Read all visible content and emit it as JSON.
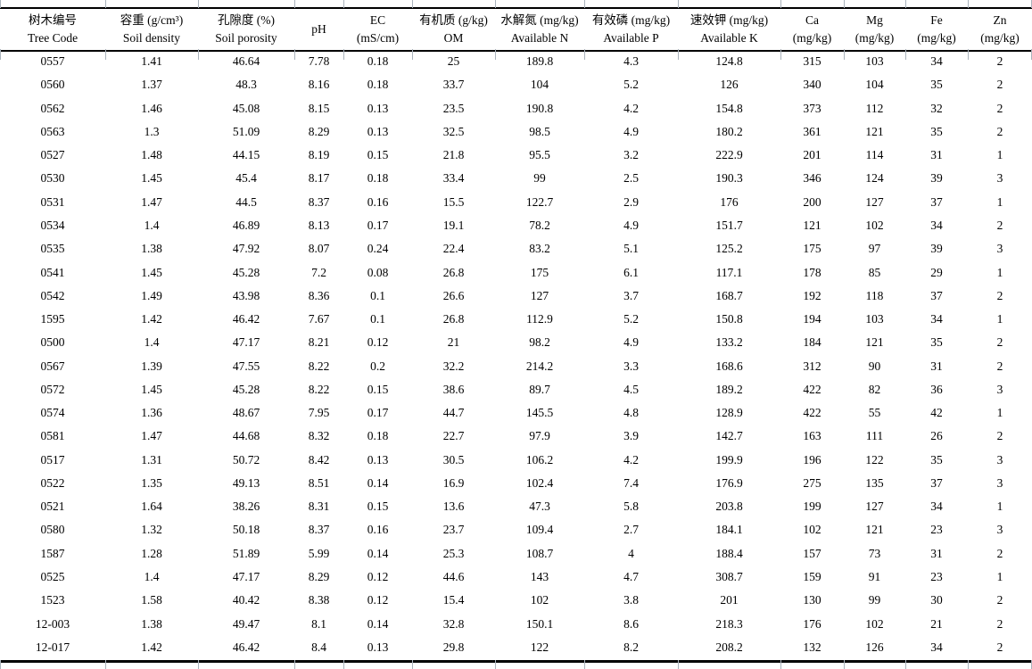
{
  "table": {
    "columns": [
      {
        "id": "tree_code",
        "line1": "树木编号",
        "line2": "Tree Code"
      },
      {
        "id": "soil_density",
        "line1": "容重 (g/cm³)",
        "line2": "Soil density"
      },
      {
        "id": "soil_porosity",
        "line1": "孔隙度 (%)",
        "line2": "Soil porosity"
      },
      {
        "id": "ph",
        "line1": "pH",
        "line2": ""
      },
      {
        "id": "ec",
        "line1": "EC",
        "line2": "(mS/cm)"
      },
      {
        "id": "om",
        "line1": "有机质 (g/kg)",
        "line2": "OM"
      },
      {
        "id": "available_n",
        "line1": "水解氮 (mg/kg)",
        "line2": "Available N"
      },
      {
        "id": "available_p",
        "line1": "有效磷 (mg/kg)",
        "line2": "Available P"
      },
      {
        "id": "available_k",
        "line1": "速效钾 (mg/kg)",
        "line2": "Available K"
      },
      {
        "id": "ca",
        "line1": "Ca",
        "line2": "(mg/kg)"
      },
      {
        "id": "mg",
        "line1": "Mg",
        "line2": "(mg/kg)"
      },
      {
        "id": "fe",
        "line1": "Fe",
        "line2": "(mg/kg)"
      },
      {
        "id": "zn",
        "line1": "Zn",
        "line2": "(mg/kg)"
      }
    ],
    "rows": [
      [
        "0557",
        "1.41",
        "46.64",
        "7.78",
        "0.18",
        "25",
        "189.8",
        "4.3",
        "124.8",
        "315",
        "103",
        "34",
        "2"
      ],
      [
        "0560",
        "1.37",
        "48.3",
        "8.16",
        "0.18",
        "33.7",
        "104",
        "5.2",
        "126",
        "340",
        "104",
        "35",
        "2"
      ],
      [
        "0562",
        "1.46",
        "45.08",
        "8.15",
        "0.13",
        "23.5",
        "190.8",
        "4.2",
        "154.8",
        "373",
        "112",
        "32",
        "2"
      ],
      [
        "0563",
        "1.3",
        "51.09",
        "8.29",
        "0.13",
        "32.5",
        "98.5",
        "4.9",
        "180.2",
        "361",
        "121",
        "35",
        "2"
      ],
      [
        "0527",
        "1.48",
        "44.15",
        "8.19",
        "0.15",
        "21.8",
        "95.5",
        "3.2",
        "222.9",
        "201",
        "114",
        "31",
        "1"
      ],
      [
        "0530",
        "1.45",
        "45.4",
        "8.17",
        "0.18",
        "33.4",
        "99",
        "2.5",
        "190.3",
        "346",
        "124",
        "39",
        "3"
      ],
      [
        "0531",
        "1.47",
        "44.5",
        "8.37",
        "0.16",
        "15.5",
        "122.7",
        "2.9",
        "176",
        "200",
        "127",
        "37",
        "1"
      ],
      [
        "0534",
        "1.4",
        "46.89",
        "8.13",
        "0.17",
        "19.1",
        "78.2",
        "4.9",
        "151.7",
        "121",
        "102",
        "34",
        "2"
      ],
      [
        "0535",
        "1.38",
        "47.92",
        "8.07",
        "0.24",
        "22.4",
        "83.2",
        "5.1",
        "125.2",
        "175",
        "97",
        "39",
        "3"
      ],
      [
        "0541",
        "1.45",
        "45.28",
        "7.2",
        "0.08",
        "26.8",
        "175",
        "6.1",
        "117.1",
        "178",
        "85",
        "29",
        "1"
      ],
      [
        "0542",
        "1.49",
        "43.98",
        "8.36",
        "0.1",
        "26.6",
        "127",
        "3.7",
        "168.7",
        "192",
        "118",
        "37",
        "2"
      ],
      [
        "1595",
        "1.42",
        "46.42",
        "7.67",
        "0.1",
        "26.8",
        "112.9",
        "5.2",
        "150.8",
        "194",
        "103",
        "34",
        "1"
      ],
      [
        "0500",
        "1.4",
        "47.17",
        "8.21",
        "0.12",
        "21",
        "98.2",
        "4.9",
        "133.2",
        "184",
        "121",
        "35",
        "2"
      ],
      [
        "0567",
        "1.39",
        "47.55",
        "8.22",
        "0.2",
        "32.2",
        "214.2",
        "3.3",
        "168.6",
        "312",
        "90",
        "31",
        "2"
      ],
      [
        "0572",
        "1.45",
        "45.28",
        "8.22",
        "0.15",
        "38.6",
        "89.7",
        "4.5",
        "189.2",
        "422",
        "82",
        "36",
        "3"
      ],
      [
        "0574",
        "1.36",
        "48.67",
        "7.95",
        "0.17",
        "44.7",
        "145.5",
        "4.8",
        "128.9",
        "422",
        "55",
        "42",
        "1"
      ],
      [
        "0581",
        "1.47",
        "44.68",
        "8.32",
        "0.18",
        "22.7",
        "97.9",
        "3.9",
        "142.7",
        "163",
        "111",
        "26",
        "2"
      ],
      [
        "0517",
        "1.31",
        "50.72",
        "8.42",
        "0.13",
        "30.5",
        "106.2",
        "4.2",
        "199.9",
        "196",
        "122",
        "35",
        "3"
      ],
      [
        "0522",
        "1.35",
        "49.13",
        "8.51",
        "0.14",
        "16.9",
        "102.4",
        "7.4",
        "176.9",
        "275",
        "135",
        "37",
        "3"
      ],
      [
        "0521",
        "1.64",
        "38.26",
        "8.31",
        "0.15",
        "13.6",
        "47.3",
        "5.8",
        "203.8",
        "199",
        "127",
        "34",
        "1"
      ],
      [
        "0580",
        "1.32",
        "50.18",
        "8.37",
        "0.16",
        "23.7",
        "109.4",
        "2.7",
        "184.1",
        "102",
        "121",
        "23",
        "3"
      ],
      [
        "1587",
        "1.28",
        "51.89",
        "5.99",
        "0.14",
        "25.3",
        "108.7",
        "4",
        "188.4",
        "157",
        "73",
        "31",
        "2"
      ],
      [
        "0525",
        "1.4",
        "47.17",
        "8.29",
        "0.12",
        "44.6",
        "143",
        "4.7",
        "308.7",
        "159",
        "91",
        "23",
        "1"
      ],
      [
        "1523",
        "1.58",
        "40.42",
        "8.38",
        "0.12",
        "15.4",
        "102",
        "3.8",
        "201",
        "130",
        "99",
        "30",
        "2"
      ],
      [
        "12-003",
        "1.38",
        "49.47",
        "8.1",
        "0.14",
        "32.8",
        "150.1",
        "8.6",
        "218.3",
        "176",
        "102",
        "21",
        "2"
      ],
      [
        "12-017",
        "1.42",
        "46.42",
        "8.4",
        "0.13",
        "29.8",
        "122",
        "8.2",
        "208.2",
        "132",
        "126",
        "34",
        "2"
      ]
    ]
  },
  "colors": {
    "rule": "#000000",
    "grid_tick": "#aab3bc",
    "text": "#000000",
    "background": "#ffffff"
  }
}
